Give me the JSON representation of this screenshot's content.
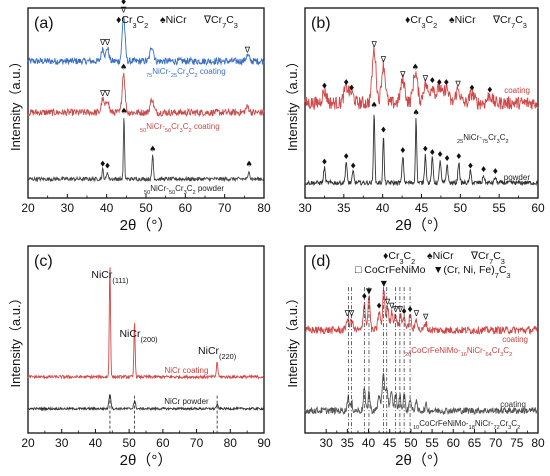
{
  "panels": [
    {
      "id": "a",
      "label": "(a)",
      "xlim": [
        20,
        80
      ],
      "xticks": [
        20,
        30,
        40,
        50,
        60,
        70,
        80
      ],
      "xlabel": "2θ（°）",
      "ylabel": "Intensity（a.u.）",
      "legend": [
        "♦Cr3C2",
        "♠NiCr",
        "∇Cr7C3"
      ],
      "series": [
        {
          "name": "75NiCr-25Cr3C2 coating",
          "color": "#3a6fc4",
          "base": 0.72,
          "noise": 0.018,
          "peaks": [
            [
              39.0,
              0.07,
              0.5
            ],
            [
              40.2,
              0.07,
              0.5
            ],
            [
              44.3,
              0.24,
              0.5
            ],
            [
              51.5,
              0.08,
              0.6
            ],
            [
              75.8,
              0.03,
              0.6
            ]
          ]
        },
        {
          "name": "50NiCr-50Cr3C2 coating",
          "color": "#c84b4b",
          "base": 0.45,
          "noise": 0.018,
          "peaks": [
            [
              39.0,
              0.07,
              0.5
            ],
            [
              40.2,
              0.07,
              0.5
            ],
            [
              44.3,
              0.21,
              0.5
            ],
            [
              51.5,
              0.07,
              0.6
            ],
            [
              75.8,
              0.03,
              0.6
            ]
          ]
        },
        {
          "name": "50NiCr-50Cr3C2 powder",
          "color": "#444444",
          "base": 0.1,
          "noise": 0.01,
          "peaks": [
            [
              39.0,
              0.05,
              0.25
            ],
            [
              40.2,
              0.04,
              0.25
            ],
            [
              44.4,
              0.33,
              0.2
            ],
            [
              51.7,
              0.13,
              0.25
            ],
            [
              76.2,
              0.05,
              0.25
            ]
          ]
        }
      ],
      "markers": [
        {
          "x": 44.3,
          "s": 0,
          "sym": "∇"
        },
        {
          "x": 44.3,
          "s": 0,
          "sym": "♦"
        },
        {
          "x": 39.0,
          "s": 0,
          "sym": "∇"
        },
        {
          "x": 40.2,
          "s": 0,
          "sym": "∇"
        },
        {
          "x": 75.8,
          "s": 0,
          "sym": "∇"
        },
        {
          "x": 44.3,
          "s": 1,
          "sym": "♠"
        },
        {
          "x": 39.0,
          "s": 1,
          "sym": "∇"
        },
        {
          "x": 40.2,
          "s": 1,
          "sym": "∇"
        },
        {
          "x": 44.4,
          "s": 2,
          "sym": "♠"
        },
        {
          "x": 39.0,
          "s": 2,
          "sym": "♦"
        },
        {
          "x": 40.2,
          "s": 2,
          "sym": "♦"
        },
        {
          "x": 51.7,
          "s": 2,
          "sym": "♠"
        },
        {
          "x": 76.2,
          "s": 2,
          "sym": "♠"
        }
      ]
    },
    {
      "id": "b",
      "label": "(b)",
      "xlim": [
        30,
        60
      ],
      "xticks": [
        30,
        35,
        40,
        45,
        50,
        55,
        60
      ],
      "xlabel": "2θ（°）",
      "ylabel": "Intensity（a.u.）",
      "legend": [
        "♦Cr3C2",
        "♠NiCr",
        "∇Cr7C3"
      ],
      "series": [
        {
          "name": "coating",
          "color": "#d04848",
          "base": 0.5,
          "noise": 0.035,
          "peaks": [
            [
              32.5,
              0.06,
              0.4
            ],
            [
              35.3,
              0.08,
              0.4
            ],
            [
              36.0,
              0.05,
              0.4
            ],
            [
              38.9,
              0.28,
              0.35
            ],
            [
              40.1,
              0.2,
              0.35
            ],
            [
              42.6,
              0.12,
              0.4
            ],
            [
              44.2,
              0.16,
              0.4
            ],
            [
              45.5,
              0.1,
              0.4
            ],
            [
              46.4,
              0.09,
              0.4
            ],
            [
              47.3,
              0.08,
              0.4
            ],
            [
              48.2,
              0.08,
              0.4
            ],
            [
              49.7,
              0.07,
              0.4
            ],
            [
              51.5,
              0.05,
              0.4
            ],
            [
              53.8,
              0.04,
              0.4
            ]
          ]
        },
        {
          "name": "powder",
          "color": "#333333",
          "base": 0.08,
          "noise": 0.012,
          "peaks": [
            [
              32.5,
              0.08,
              0.15
            ],
            [
              35.3,
              0.11,
              0.15
            ],
            [
              36.2,
              0.06,
              0.15
            ],
            [
              38.9,
              0.38,
              0.12
            ],
            [
              40.1,
              0.25,
              0.12
            ],
            [
              42.6,
              0.14,
              0.15
            ],
            [
              44.3,
              0.34,
              0.12
            ],
            [
              45.5,
              0.15,
              0.15
            ],
            [
              46.4,
              0.13,
              0.15
            ],
            [
              47.4,
              0.12,
              0.15
            ],
            [
              48.3,
              0.1,
              0.15
            ],
            [
              49.8,
              0.11,
              0.15
            ],
            [
              51.3,
              0.06,
              0.15
            ],
            [
              53.0,
              0.04,
              0.15
            ],
            [
              54.5,
              0.03,
              0.15
            ]
          ]
        }
      ],
      "annotation": "25NiCr-75Cr3C2"
    },
    {
      "id": "c",
      "label": "(c)",
      "xlim": [
        20,
        90
      ],
      "xticks": [
        20,
        30,
        40,
        50,
        60,
        70,
        80,
        90
      ],
      "xlabel": "2θ（°）",
      "ylabel": "Intensity（a.u.）",
      "series": [
        {
          "name": "NiCr coating",
          "color": "#d04848",
          "base": 0.3,
          "noise": 0.008,
          "peaks": [
            [
              44.3,
              0.62,
              0.25
            ],
            [
              51.6,
              0.3,
              0.25
            ],
            [
              76.1,
              0.08,
              0.3
            ]
          ]
        },
        {
          "name": "NiCr powder",
          "color": "#333333",
          "base": 0.13,
          "noise": 0.006,
          "peaks": [
            [
              44.3,
              0.08,
              0.4
            ],
            [
              51.6,
              0.04,
              0.4
            ],
            [
              76.1,
              0.02,
              0.4
            ]
          ]
        }
      ],
      "peak_labels": [
        "NiCr(111)",
        "NiCr(200)",
        "NiCr(220)"
      ]
    },
    {
      "id": "d",
      "label": "(d)",
      "xlim": [
        25,
        80
      ],
      "xticks": [
        30,
        35,
        40,
        45,
        50,
        55,
        60,
        65,
        70,
        75,
        80
      ],
      "xlabel": "2θ（°）",
      "ylabel": "Intensity（a.u.）",
      "legend_row1": [
        "♦Cr3C2",
        "♠NiCr",
        "∇Cr7C3"
      ],
      "legend_row2": [
        "□ CoCrFeNiMo",
        "▼(Cr, Ni, Fe)7C3"
      ],
      "series": [
        {
          "name": "20CoCrFeNiMo-16NiCr-64Cr3C2",
          "color": "#d04848",
          "base": 0.55,
          "noise": 0.02,
          "peaks": [
            [
              35.0,
              0.06,
              0.4
            ],
            [
              36.0,
              0.06,
              0.4
            ],
            [
              39.0,
              0.15,
              0.35
            ],
            [
              40.1,
              0.18,
              0.35
            ],
            [
              42.5,
              0.1,
              0.4
            ],
            [
              43.6,
              0.22,
              0.35
            ],
            [
              44.5,
              0.12,
              0.4
            ],
            [
              45.5,
              0.1,
              0.4
            ],
            [
              46.4,
              0.08,
              0.4
            ],
            [
              47.5,
              0.08,
              0.4
            ],
            [
              48.4,
              0.07,
              0.4
            ],
            [
              49.8,
              0.08,
              0.4
            ],
            [
              51.3,
              0.06,
              0.4
            ],
            [
              53.5,
              0.04,
              0.4
            ]
          ]
        },
        {
          "name": "10CoCrFeNiMo-18NiCr-72Cr3C2",
          "color": "#555555",
          "base": 0.12,
          "noise": 0.018,
          "peaks": [
            [
              35.2,
              0.08,
              0.3
            ],
            [
              36.0,
              0.04,
              0.3
            ],
            [
              39.0,
              0.12,
              0.3
            ],
            [
              40.1,
              0.1,
              0.3
            ],
            [
              42.5,
              0.08,
              0.4
            ],
            [
              43.5,
              0.18,
              0.4
            ],
            [
              44.3,
              0.12,
              0.4
            ],
            [
              45.4,
              0.09,
              0.4
            ],
            [
              46.4,
              0.1,
              0.3
            ],
            [
              47.4,
              0.08,
              0.3
            ],
            [
              48.4,
              0.09,
              0.3
            ],
            [
              49.8,
              0.07,
              0.3
            ],
            [
              51.2,
              0.05,
              0.3
            ],
            [
              53.6,
              0.03,
              0.3
            ]
          ]
        }
      ],
      "coating_label": "coating",
      "dash_lines": [
        35.3,
        36.0,
        39.0,
        40.1,
        43.5,
        44.3,
        46.4,
        47.4,
        48.4,
        49.8
      ]
    }
  ]
}
